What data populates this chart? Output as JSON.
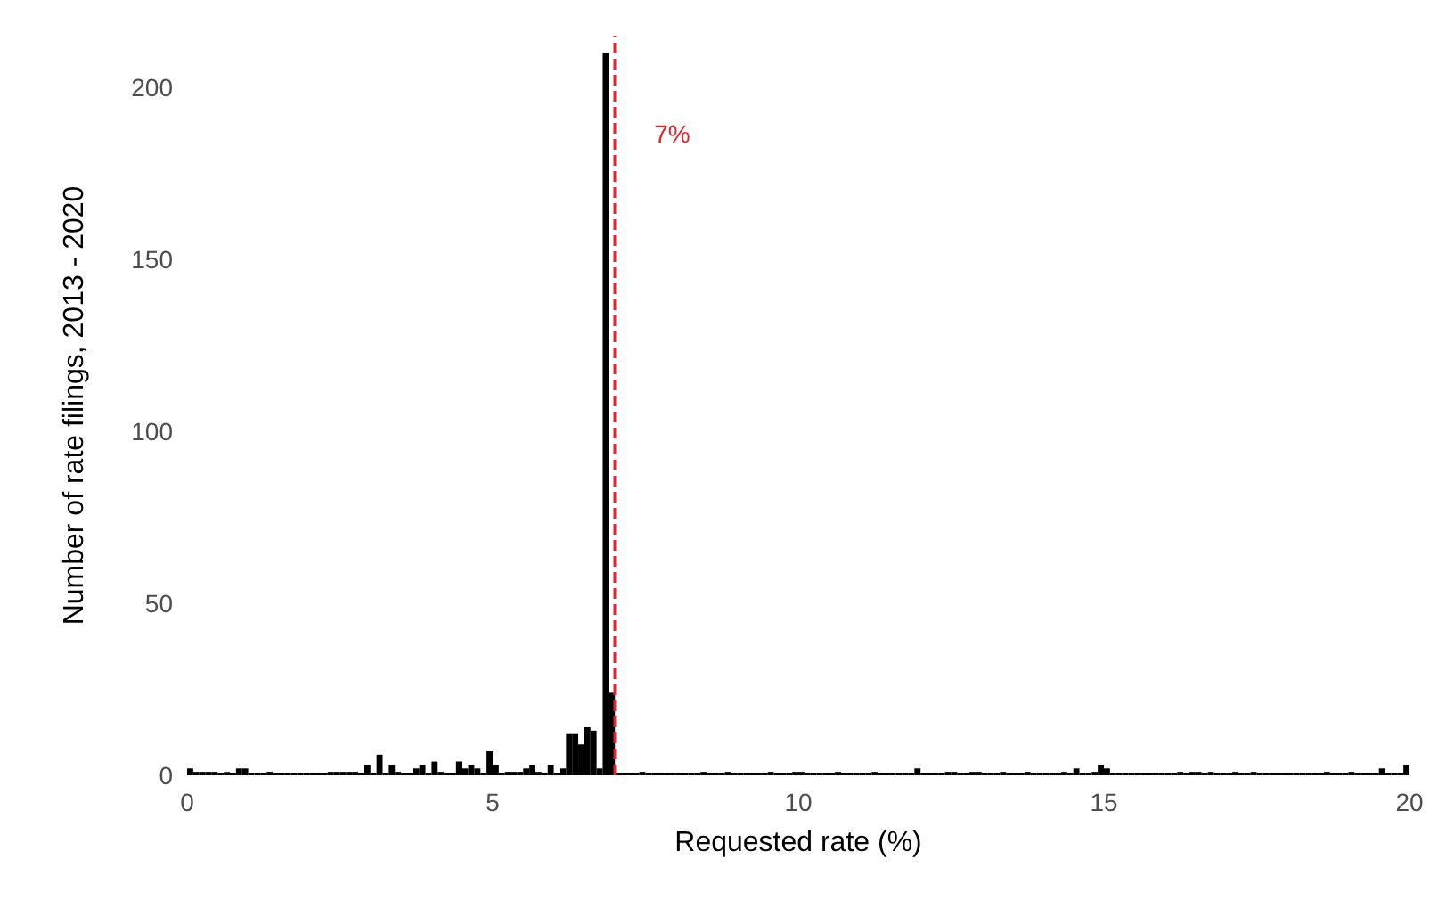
{
  "chart_data": {
    "type": "histogram",
    "xlabel": "Requested rate (%)",
    "ylabel": "Number of rate filings, 2013 - 2020",
    "bins": [
      0,
      0.1,
      0.2,
      0.3,
      0.4,
      0.5,
      0.6,
      0.7,
      0.8,
      0.9,
      1,
      1.1,
      1.2,
      1.3,
      1.4,
      1.5,
      1.6,
      1.7,
      1.8,
      1.9,
      2,
      2.1,
      2.2,
      2.3,
      2.4,
      2.5,
      2.6,
      2.7,
      2.8,
      2.9,
      3,
      3.1,
      3.2,
      3.3,
      3.4,
      3.5,
      3.6,
      3.7,
      3.8,
      3.9,
      4,
      4.1,
      4.2,
      4.3,
      4.4,
      4.5,
      4.6,
      4.7,
      4.8,
      4.9,
      5,
      5.1,
      5.2,
      5.3,
      5.4,
      5.5,
      5.6,
      5.7,
      5.8,
      5.9,
      6,
      6.1,
      6.2,
      6.3,
      6.4,
      6.5,
      6.6,
      6.7,
      6.8,
      6.9,
      7,
      7.1,
      7.2,
      7.3,
      7.4,
      7.5,
      7.6,
      7.7,
      7.8,
      7.9,
      8,
      8.1,
      8.2,
      8.3,
      8.4,
      8.5,
      8.6,
      8.7,
      8.8,
      8.9,
      9,
      9.1,
      9.2,
      9.3,
      9.4,
      9.5,
      9.6,
      9.7,
      9.8,
      9.9,
      10,
      10.1,
      10.2,
      10.3,
      10.4,
      10.5,
      10.6,
      10.7,
      10.8,
      10.9,
      11,
      11.1,
      11.2,
      11.3,
      11.4,
      11.5,
      11.6,
      11.7,
      11.8,
      11.9,
      12,
      12.1,
      12.2,
      12.3,
      12.4,
      12.5,
      12.6,
      12.7,
      12.8,
      12.9,
      13,
      13.1,
      13.2,
      13.3,
      13.4,
      13.5,
      13.6,
      13.7,
      13.8,
      13.9,
      14,
      14.1,
      14.2,
      14.3,
      14.4,
      14.5,
      14.6,
      14.7,
      14.8,
      14.9,
      15,
      15.1,
      15.2,
      15.3,
      15.4,
      15.5,
      15.6,
      15.7,
      15.8,
      15.9,
      16,
      16.1,
      16.2,
      16.3,
      16.4,
      16.5,
      16.6,
      16.7,
      16.8,
      16.9,
      17,
      17.1,
      17.2,
      17.3,
      17.4,
      17.5,
      17.6,
      17.7,
      17.8,
      17.9,
      18,
      18.1,
      18.2,
      18.3,
      18.4,
      18.5,
      18.6,
      18.7,
      18.8,
      18.9,
      19,
      19.1,
      19.2,
      19.3,
      19.4,
      19.5,
      19.6,
      19.7,
      19.8,
      19.9,
      20
    ],
    "values": [
      2,
      1,
      1,
      1,
      1,
      0,
      1,
      0,
      2,
      2,
      0,
      0,
      0,
      1,
      0,
      0,
      0,
      0,
      0,
      0,
      0,
      0,
      0,
      1,
      1,
      1,
      1,
      1,
      0,
      3,
      0,
      6,
      0,
      3,
      1,
      0,
      0,
      2,
      3,
      0,
      4,
      1,
      0,
      0,
      4,
      2,
      3,
      2,
      0,
      7,
      3,
      0,
      1,
      1,
      1,
      2,
      3,
      1,
      0,
      3,
      0,
      2,
      12,
      12,
      9,
      14,
      13,
      2,
      210,
      24,
      0,
      0,
      0,
      0,
      1,
      0,
      0,
      0,
      0,
      0,
      0,
      0,
      0,
      0,
      1,
      0,
      0,
      0,
      1,
      0,
      0,
      0,
      0,
      0,
      0,
      1,
      0,
      0,
      0,
      1,
      1,
      0,
      0,
      0,
      0,
      0,
      1,
      0,
      0,
      0,
      0,
      0,
      1,
      0,
      0,
      0,
      0,
      0,
      0,
      2,
      0,
      0,
      0,
      0,
      1,
      1,
      0,
      0,
      1,
      1,
      0,
      0,
      0,
      1,
      0,
      0,
      0,
      1,
      0,
      0,
      0,
      0,
      0,
      1,
      0,
      2,
      0,
      0,
      1,
      3,
      2,
      0,
      0,
      0,
      0,
      0,
      0,
      0,
      0,
      0,
      0,
      0,
      1,
      0,
      1,
      1,
      0,
      1,
      0,
      0,
      0,
      1,
      0,
      0,
      1,
      0,
      0,
      0,
      0,
      0,
      0,
      0,
      0,
      0,
      0,
      0,
      1,
      0,
      0,
      0,
      1,
      0,
      0,
      0,
      0,
      2,
      0,
      0,
      0,
      3
    ],
    "color": "#000000",
    "xlim": [
      0,
      20
    ],
    "xticks": [
      0,
      5,
      10,
      15,
      20
    ],
    "ylim": [
      0,
      215
    ],
    "yticks": [
      0,
      50,
      100,
      150,
      200
    ],
    "grid": false,
    "ref_lines": [
      {
        "axis": "x",
        "value": 7,
        "label": "7%",
        "color": "#f0202a",
        "line_style": "dashed"
      }
    ]
  }
}
